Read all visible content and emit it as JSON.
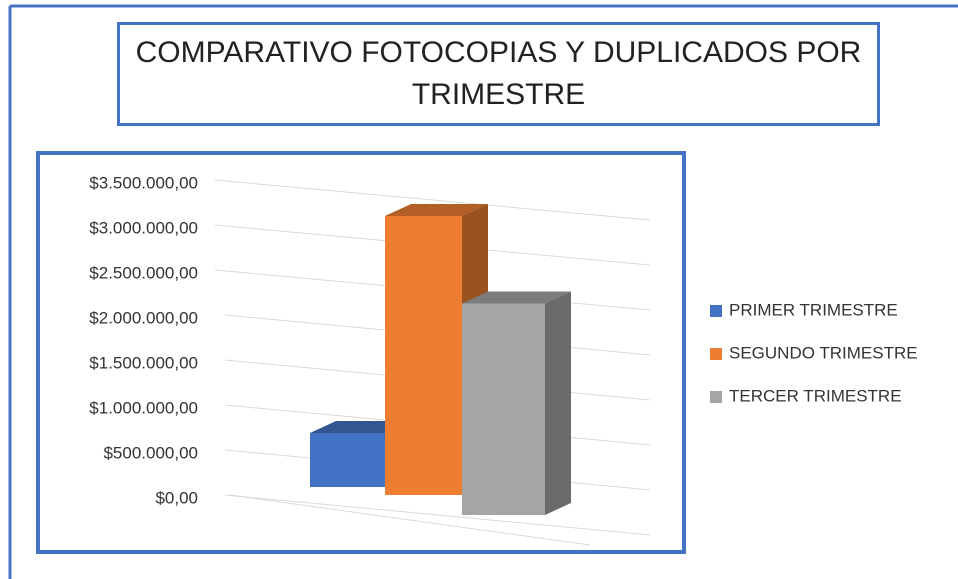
{
  "chart_data": {
    "type": "bar3d",
    "title": "COMPARATIVO FOTOCOPIAS Y DUPLICADOS POR TRIMESTRE",
    "categories": [
      null
    ],
    "series": [
      {
        "name": "PRIMER TRIMESTRE",
        "color": "#4472c4",
        "values": [
          600000
        ]
      },
      {
        "name": "SEGUNDO TRIMESTRE",
        "color": "#ed7d31",
        "values": [
          3100000
        ]
      },
      {
        "name": "TERCER TRIMESTRE",
        "color": "#a5a5a5",
        "values": [
          2350000
        ]
      }
    ],
    "ylim": [
      0,
      3500000
    ],
    "yticks": [
      {
        "value": 0,
        "label": "$0,00"
      },
      {
        "value": 500000,
        "label": "$500.000,00"
      },
      {
        "value": 1000000,
        "label": "$1.000.000,00"
      },
      {
        "value": 1500000,
        "label": "$1.500.000,00"
      },
      {
        "value": 2000000,
        "label": "$2.000.000,00"
      },
      {
        "value": 2500000,
        "label": "$2.500.000,00"
      },
      {
        "value": 3000000,
        "label": "$3.000.000,00"
      },
      {
        "value": 3500000,
        "label": "$3.500.000,00"
      }
    ],
    "grid": true,
    "legend": "right"
  }
}
